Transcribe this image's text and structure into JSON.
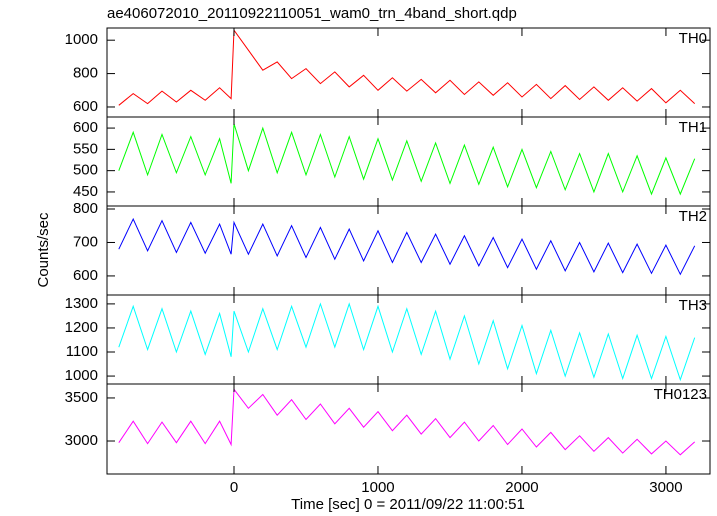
{
  "chart_data": {
    "type": "line",
    "title": "ae406072010_20110922110051_wam0_trn_4band_short.qdp",
    "xlabel": "Time [sec] 0 = 2011/09/22 11:00:51",
    "ylabel": "Counts/sec",
    "xlim": [
      -882,
      3306
    ],
    "xticks": [
      0,
      1000,
      2000,
      3000
    ],
    "x": [
      -800,
      -700,
      -600,
      -500,
      -400,
      -300,
      -200,
      -100,
      -20,
      0,
      100,
      200,
      300,
      400,
      500,
      600,
      700,
      800,
      900,
      1000,
      1100,
      1200,
      1300,
      1400,
      1500,
      1600,
      1700,
      1800,
      1900,
      2000,
      2100,
      2200,
      2300,
      2400,
      2500,
      2600,
      2700,
      2800,
      2900,
      3000,
      3100,
      3200
    ],
    "series": [
      {
        "name": "TH0",
        "color": "#ff0000",
        "ylim": [
          540,
          1073
        ],
        "yticks": [
          600,
          800,
          1000
        ],
        "values": [
          610,
          680,
          620,
          695,
          630,
          700,
          640,
          715,
          650,
          1060,
          940,
          820,
          870,
          770,
          830,
          740,
          810,
          720,
          790,
          700,
          775,
          695,
          765,
          685,
          760,
          675,
          750,
          670,
          745,
          660,
          735,
          650,
          728,
          645,
          720,
          640,
          715,
          635,
          710,
          625,
          700,
          620
        ]
      },
      {
        "name": "TH1",
        "color": "#00ff00",
        "ylim": [
          417,
          626
        ],
        "yticks": [
          450,
          500,
          550,
          600
        ],
        "values": [
          500,
          590,
          490,
          585,
          495,
          580,
          490,
          575,
          470,
          610,
          500,
          600,
          495,
          590,
          490,
          585,
          485,
          580,
          480,
          575,
          478,
          570,
          475,
          565,
          470,
          560,
          468,
          555,
          462,
          550,
          460,
          545,
          455,
          540,
          450,
          540,
          450,
          535,
          445,
          530,
          445,
          528
        ]
      },
      {
        "name": "TH2",
        "color": "#0000ff",
        "ylim": [
          543,
          809
        ],
        "yticks": [
          600,
          700,
          800
        ],
        "values": [
          680,
          770,
          675,
          765,
          670,
          760,
          668,
          755,
          665,
          760,
          665,
          755,
          660,
          750,
          655,
          745,
          650,
          740,
          645,
          735,
          640,
          730,
          640,
          725,
          635,
          720,
          630,
          715,
          625,
          710,
          620,
          705,
          615,
          700,
          612,
          698,
          610,
          695,
          608,
          692,
          605,
          690
        ]
      },
      {
        "name": "TH3",
        "color": "#00ffff",
        "ylim": [
          967,
          1337
        ],
        "yticks": [
          1000,
          1100,
          1200,
          1300
        ],
        "values": [
          1120,
          1290,
          1110,
          1280,
          1100,
          1270,
          1090,
          1260,
          1080,
          1270,
          1100,
          1280,
          1110,
          1290,
          1120,
          1300,
          1120,
          1300,
          1110,
          1290,
          1100,
          1280,
          1090,
          1270,
          1070,
          1250,
          1050,
          1230,
          1030,
          1210,
          1010,
          1190,
          1000,
          1180,
          995,
          1175,
          990,
          1170,
          990,
          1165,
          985,
          1160
        ]
      },
      {
        "name": "TH0123",
        "color": "#ff00ff",
        "ylim": [
          2617,
          3662
        ],
        "yticks": [
          3000,
          3500
        ],
        "values": [
          2980,
          3230,
          2970,
          3220,
          2980,
          3230,
          2970,
          3230,
          2960,
          3600,
          3380,
          3540,
          3300,
          3480,
          3250,
          3430,
          3200,
          3380,
          3160,
          3340,
          3120,
          3300,
          3080,
          3260,
          3040,
          3220,
          3000,
          3180,
          2960,
          3140,
          2930,
          3100,
          2900,
          3060,
          2880,
          3040,
          2860,
          3020,
          2850,
          3000,
          2840,
          2990
        ]
      }
    ]
  }
}
